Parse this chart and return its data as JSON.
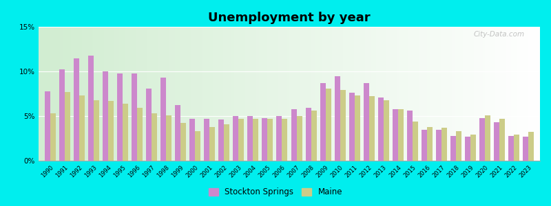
{
  "title": "Unemployment by year",
  "background_color": "#00EEEE",
  "stockton_color": "#CC88CC",
  "maine_color": "#CCCC88",
  "years": [
    1990,
    1991,
    1992,
    1993,
    1994,
    1995,
    1996,
    1997,
    1998,
    1999,
    2000,
    2001,
    2002,
    2003,
    2004,
    2005,
    2006,
    2007,
    2008,
    2009,
    2010,
    2011,
    2012,
    2013,
    2014,
    2015,
    2016,
    2017,
    2018,
    2019,
    2020,
    2021,
    2022,
    2023
  ],
  "stockton": [
    7.8,
    10.2,
    11.5,
    11.8,
    10.0,
    9.8,
    9.8,
    8.1,
    9.3,
    6.2,
    4.7,
    4.7,
    4.6,
    5.0,
    5.0,
    4.8,
    5.0,
    5.8,
    5.9,
    8.7,
    9.5,
    7.6,
    8.7,
    7.1,
    5.8,
    5.6,
    3.5,
    3.5,
    2.8,
    2.7,
    4.8,
    4.3,
    2.8,
    2.7
  ],
  "maine": [
    5.3,
    7.7,
    7.3,
    6.8,
    6.7,
    6.4,
    5.9,
    5.3,
    5.1,
    4.2,
    3.3,
    3.8,
    4.1,
    4.7,
    4.7,
    4.7,
    4.7,
    5.0,
    5.6,
    8.1,
    7.9,
    7.3,
    7.2,
    6.8,
    5.8,
    4.4,
    3.8,
    3.7,
    3.3,
    2.9,
    5.1,
    4.7,
    2.9,
    3.2
  ],
  "ylim": [
    0,
    15
  ],
  "yticks": [
    0,
    5,
    10,
    15
  ],
  "ytick_labels": [
    "0%",
    "5%",
    "10%",
    "15%"
  ],
  "watermark": "City-Data.com"
}
